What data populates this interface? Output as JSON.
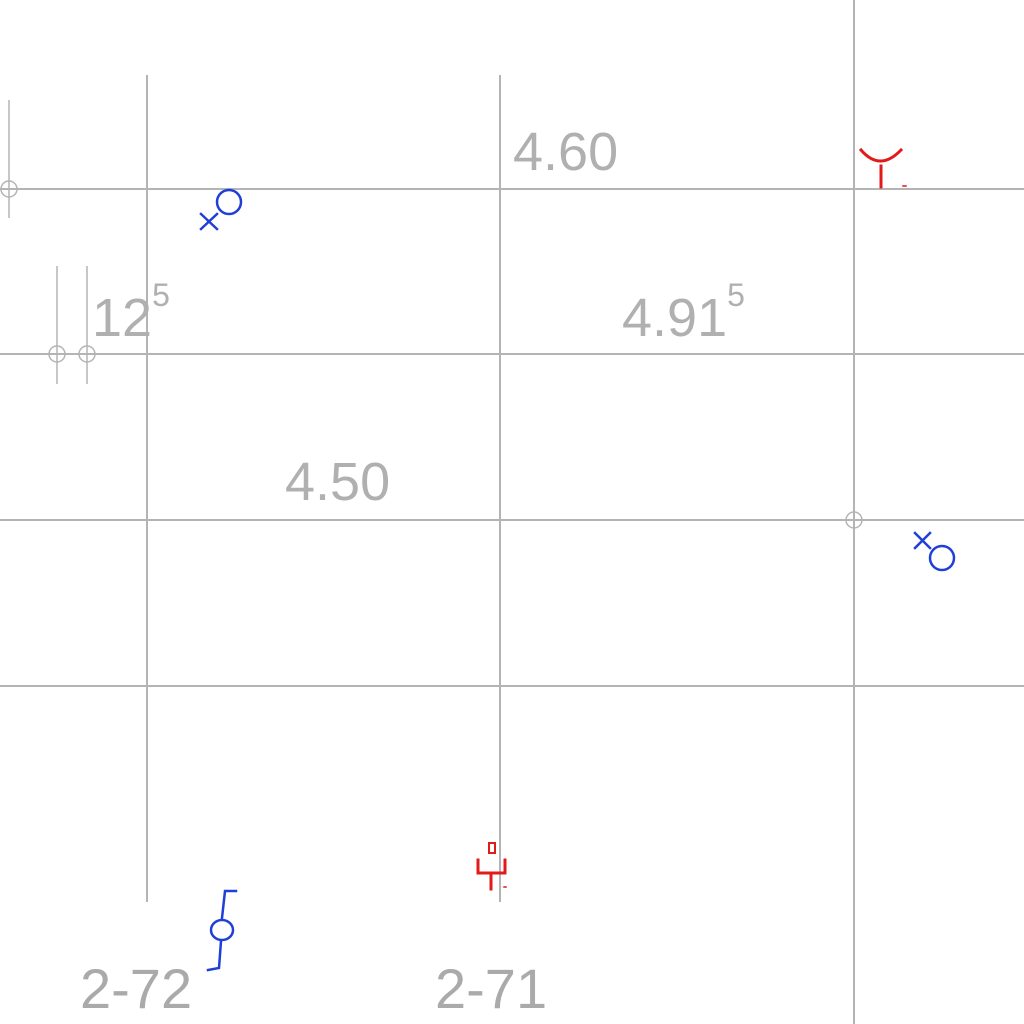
{
  "elevations": [
    {
      "value": "4.60",
      "superscript": ""
    },
    {
      "value": "12",
      "superscript": "5"
    },
    {
      "value": "4.91",
      "superscript": "5"
    },
    {
      "value": "4.50",
      "superscript": ""
    }
  ],
  "sheet_labels": [
    "2-72",
    "2-71"
  ],
  "colors": {
    "grid": "#b4b4b4",
    "text": "#b0b0b0",
    "blue_symbols": "#1f3fd6",
    "red_symbols": "#e11a1a"
  },
  "symbols": [
    {
      "name": "blue-outlet-symbol",
      "color": "blue"
    },
    {
      "name": "red-fixture-symbol",
      "color": "red"
    },
    {
      "name": "blue-outlet-symbol-2",
      "color": "blue"
    },
    {
      "name": "blue-switch-symbol",
      "color": "blue"
    },
    {
      "name": "red-socket-symbol",
      "color": "red"
    }
  ]
}
